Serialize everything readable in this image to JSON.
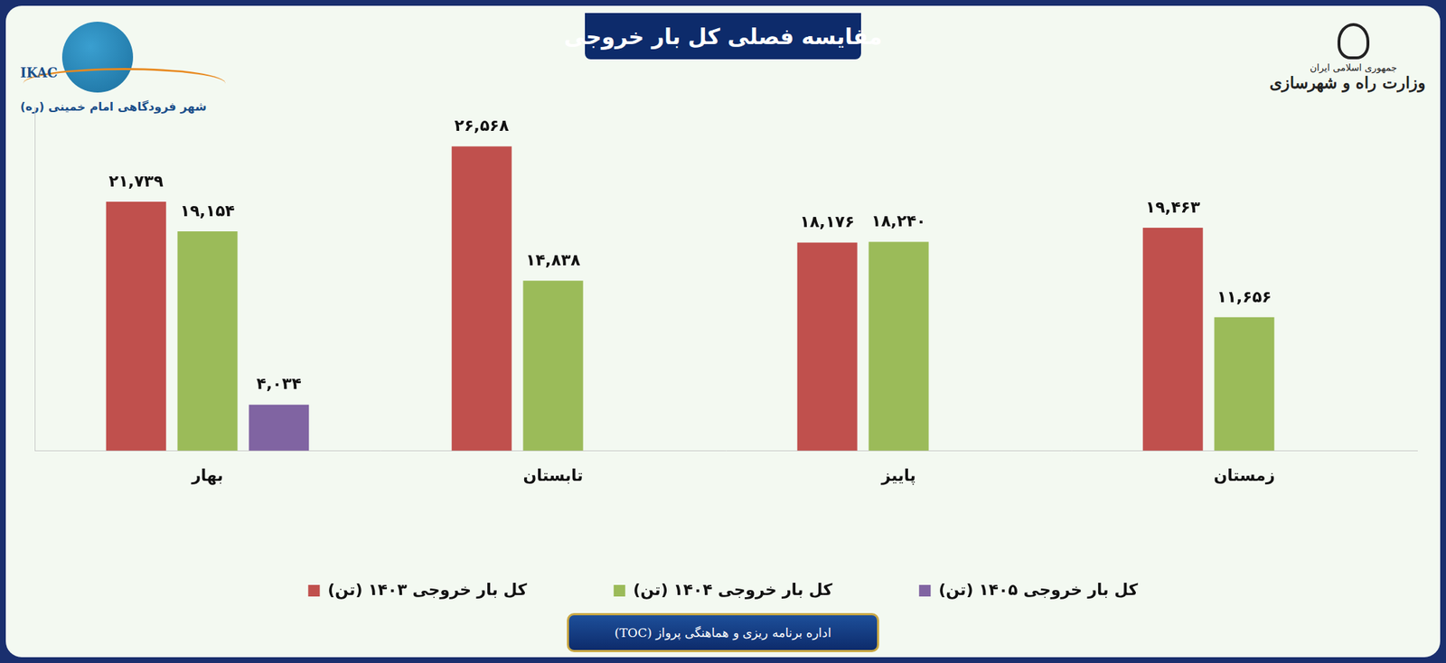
{
  "chart_data": {
    "type": "bar",
    "title": "مقایسه فصلی کل بار خروجی",
    "categories": [
      "بهار",
      "تابستان",
      "پاییز",
      "زمستان"
    ],
    "series": [
      {
        "name": "کل بار خروجی ۱۴۰۳ (تن)",
        "color": "#c0504d",
        "values": [
          21739,
          26568,
          18176,
          19463
        ],
        "value_labels": [
          "۲۱,۷۳۹",
          "۲۶,۵۶۸",
          "۱۸,۱۷۶",
          "۱۹,۴۶۳"
        ]
      },
      {
        "name": "کل بار خروجی ۱۴۰۴ (تن)",
        "color": "#9bbb59",
        "values": [
          19154,
          14838,
          18240,
          11656
        ],
        "value_labels": [
          "۱۹,۱۵۴",
          "۱۴,۸۳۸",
          "۱۸,۲۴۰",
          "۱۱,۶۵۶"
        ]
      },
      {
        "name": "کل بار خروجی ۱۴۰۵ (تن)",
        "color": "#8064a2",
        "values": [
          4034,
          null,
          null,
          null
        ],
        "value_labels": [
          "۴,۰۳۴",
          null,
          null,
          null
        ]
      }
    ],
    "ylim": [
      0,
      30000
    ],
    "yticks": [],
    "grid": false,
    "legend": "bottom",
    "data_labels": true,
    "tick_labels": "x",
    "annotations": [
      "IKAC",
      "شهر فرودگاهی امام خمینی (ره)",
      "جمهوری اسلامی ایران",
      "وزارت راه و شهرسازی",
      "اداره برنامه ریزی و هماهنگی پرواز (TOC)"
    ]
  }
}
